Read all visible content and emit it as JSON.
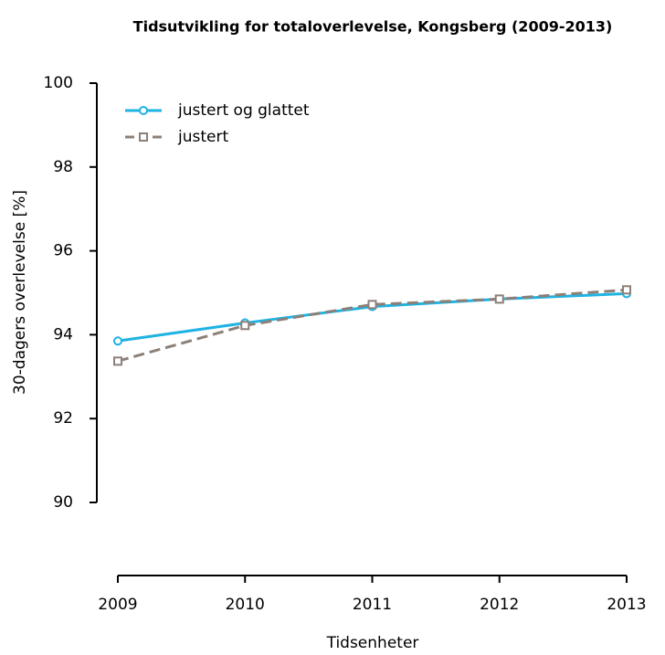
{
  "chart_data": {
    "type": "line",
    "title": "Tidsutvikling for totaloverlevelse, Kongsberg (2009-2013)",
    "x_label": "Tidsenheter",
    "y_label": "30-dagers overlevelse [%]",
    "x": [
      2009,
      2010,
      2011,
      2012,
      2013
    ],
    "series": [
      {
        "name": "justert og glattet",
        "color": "#1fb3e3",
        "marker": "circle",
        "dash": false,
        "values": [
          93.85,
          94.28,
          94.67,
          94.85,
          94.98
        ]
      },
      {
        "name": "justert",
        "color": "#8c8078",
        "marker": "square",
        "dash": true,
        "values": [
          93.37,
          94.22,
          94.72,
          94.85,
          95.07
        ]
      }
    ],
    "xlim": [
      2009,
      2013
    ],
    "xticks": [
      2009,
      2010,
      2011,
      2012,
      2013
    ],
    "ylim": [
      90,
      100
    ],
    "yticks": [
      90,
      92,
      94,
      96,
      98,
      100
    ],
    "legend": "top-left",
    "grid": false
  }
}
